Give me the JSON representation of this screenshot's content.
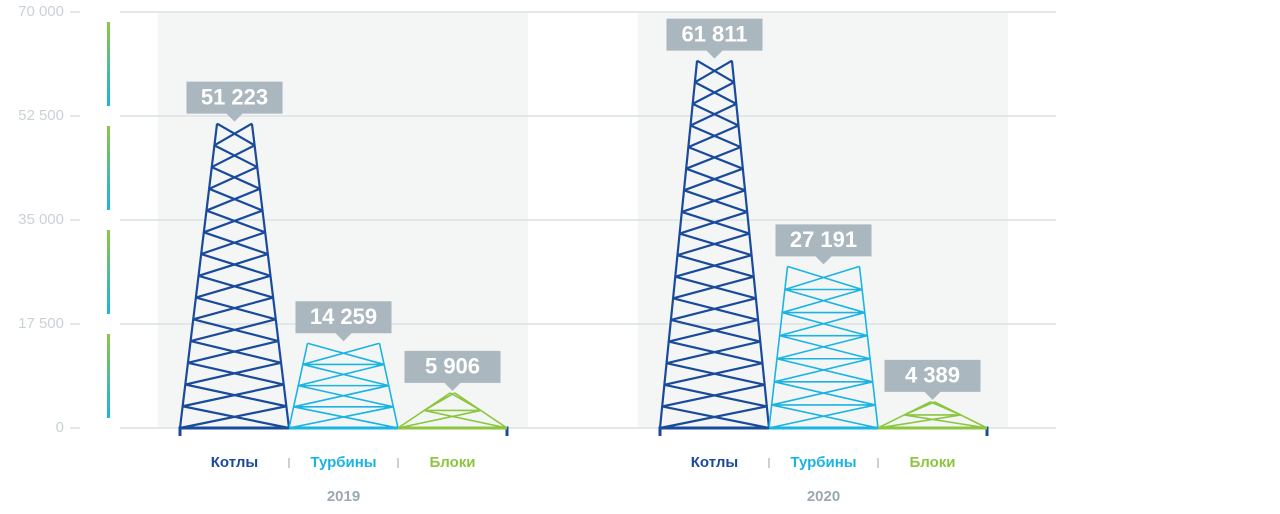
{
  "chart_data": {
    "type": "tower",
    "categories": [
      "2019",
      "2020"
    ],
    "series": [
      {
        "name": "Котлы",
        "color": "#1a4a9c",
        "values": [
          51223,
          61811
        ],
        "value_labels": [
          "51 223",
          "61 811"
        ]
      },
      {
        "name": "Турбины",
        "color": "#1ab4e4",
        "values": [
          14259,
          27191
        ],
        "value_labels": [
          "14 259",
          "27 191"
        ]
      },
      {
        "name": "Блоки",
        "color": "#8cc63f",
        "values": [
          5906,
          4389
        ],
        "value_labels": [
          "5 906",
          "4 389"
        ]
      }
    ],
    "ylim": [
      0,
      70000
    ],
    "yticks": [
      0,
      {
        "value": 17500,
        "label": "17 500"
      },
      {
        "value": 35000,
        "label": "35 000"
      },
      {
        "value": 52500,
        "label": "52 500"
      },
      {
        "value": 70000,
        "label": "70 000"
      }
    ],
    "grid": true
  }
}
